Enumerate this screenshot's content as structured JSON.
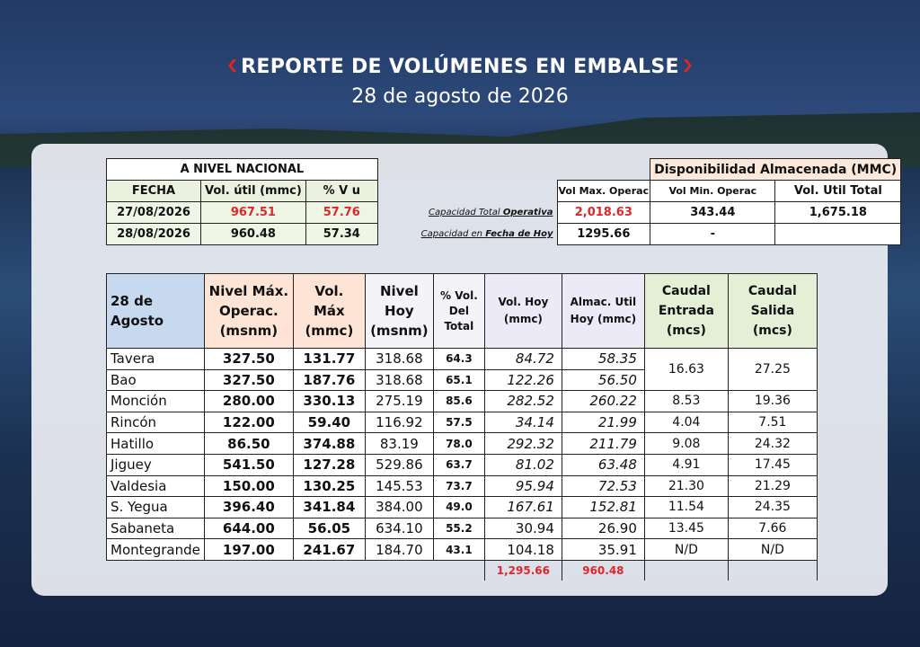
{
  "header": {
    "title": "REPORTE DE VOLÚMENES EN EMBALSE",
    "date": "28 de agosto de 2026"
  },
  "national": {
    "title": "A NIVEL NACIONAL",
    "columns": [
      "FECHA",
      "Vol. útil (mmc)",
      "% V u"
    ],
    "rows": [
      [
        "27/08/2026",
        "967.51",
        "57.76"
      ],
      [
        "28/08/2026",
        "960.48",
        "57.34"
      ]
    ]
  },
  "storage": {
    "title": "Disponibilidad Almacenada (MMC)",
    "columns": [
      "Vol Max. Operac",
      "Vol Min. Operac",
      "Vol. Util Total"
    ],
    "rows": [
      {
        "label": "Capacidad Total",
        "emphasis": "Operativa",
        "cells": [
          "2,018.63",
          "343.44",
          "1,675.18"
        ]
      },
      {
        "label": "Capacidad en",
        "emphasis": "Fecha de Hoy",
        "cells": [
          "1295.66",
          "-"
        ]
      }
    ]
  },
  "table": {
    "columns": [
      "28 de Agosto",
      "Nivel Máx. Operac. (msnm)",
      "Vol. Máx (mmc)",
      "Nivel Hoy (msnm)",
      "% Vol. Del Total",
      "Vol. Hoy (mmc)",
      "Almac. Util Hoy (mmc)",
      "Caudal Entrada (mcs)",
      "Caudal Salida (mcs)"
    ],
    "rows": [
      [
        "Tavera",
        "327.50",
        "131.77",
        "318.68",
        "64.3",
        "84.72",
        "58.35",
        "16.63",
        "27.25"
      ],
      [
        "Bao",
        "327.50",
        "187.76",
        "318.68",
        "65.1",
        "122.26",
        "56.50"
      ],
      [
        "Monción",
        "280.00",
        "330.13",
        "275.19",
        "85.6",
        "282.52",
        "260.22",
        "8.53",
        "19.36"
      ],
      [
        "Rincón",
        "122.00",
        "59.40",
        "116.92",
        "57.5",
        "34.14",
        "21.99",
        "4.04",
        "7.51"
      ],
      [
        "Hatillo",
        "86.50",
        "374.88",
        "83.19",
        "78.0",
        "292.32",
        "211.79",
        "9.08",
        "24.32"
      ],
      [
        "Jiguey",
        "541.50",
        "127.28",
        "529.86",
        "63.7",
        "81.02",
        "63.48",
        "4.91",
        "17.45"
      ],
      [
        "Valdesia",
        "150.00",
        "130.25",
        "145.53",
        "73.7",
        "95.94",
        "72.53",
        "21.30",
        "21.29"
      ],
      [
        "S. Yegua",
        "396.40",
        "341.84",
        "384.00",
        "49.0",
        "167.61",
        "152.81",
        "11.54",
        "24.35"
      ],
      [
        "Sabaneta",
        "644.00",
        "56.05",
        "634.10",
        "55.2",
        "30.94",
        "26.90",
        "13.45",
        "7.66"
      ],
      [
        "Montegrande",
        "197.00",
        "241.67",
        "184.70",
        "43.1",
        "104.18",
        "35.91",
        "N/D",
        "N/D"
      ]
    ],
    "totals": [
      "1,295.66",
      "960.48"
    ]
  }
}
